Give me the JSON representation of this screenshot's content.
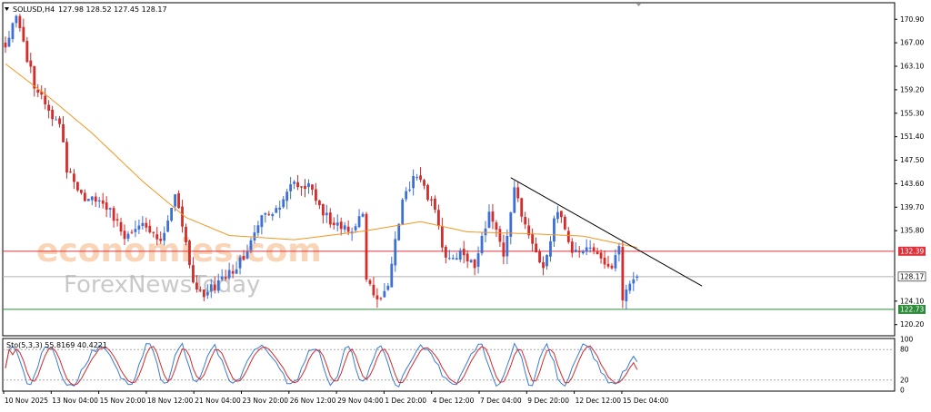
{
  "header": {
    "symbol": "SOLUSD,H4",
    "ohlc": "127.98 128.52 127.45 128.17"
  },
  "watermark": {
    "line1": "economies.com",
    "line2": "ForexNewsToday"
  },
  "colors": {
    "bull": "#3d6fd6",
    "bear": "#d42b2b",
    "ma": "#f0961f",
    "resistance": "#e0303a",
    "support": "#2e8b3a",
    "trendline": "#000000",
    "current_line": "#b0b0b0",
    "stoch_main": "#3a7bd5",
    "stoch_signal": "#d42b2b",
    "stoch_level": "#9a9a9a"
  },
  "chart_data": [
    {
      "type": "candlestick",
      "title": "SOLUSD,H4",
      "ohlc_last": {
        "open": 127.98,
        "high": 128.52,
        "low": 127.45,
        "close": 128.17
      },
      "ylim": [
        118.5,
        173.5
      ],
      "y_ticks": [
        {
          "value": 170.9,
          "label": "170.90"
        },
        {
          "value": 167.0,
          "label": "167.00"
        },
        {
          "value": 163.1,
          "label": "163.10"
        },
        {
          "value": 159.2,
          "label": "159.20"
        },
        {
          "value": 155.3,
          "label": "155.30"
        },
        {
          "value": 151.4,
          "label": "151.40"
        },
        {
          "value": 147.5,
          "label": "147.50"
        },
        {
          "value": 143.6,
          "label": "143.60"
        },
        {
          "value": 139.7,
          "label": "139.70"
        },
        {
          "value": 135.8,
          "label": "135.80"
        },
        {
          "value": 124.1,
          "label": "124.10"
        },
        {
          "value": 120.2,
          "label": "120.20"
        }
      ],
      "x_ticks": [
        "10 Nov 2025",
        "13 Nov 04:00",
        "15 Nov 20:00",
        "18 Nov 12:00",
        "21 Nov 04:00",
        "23 Nov 20:00",
        "26 Nov 12:00",
        "29 Nov 04:00",
        "1 Dec 20:00",
        "4 Dec 12:00",
        "7 Dec 04:00",
        "9 Dec 20:00",
        "12 Dec 12:00",
        "15 Dec 04:00"
      ],
      "levels": [
        {
          "name": "resistance",
          "value": 132.39,
          "label": "132.39"
        },
        {
          "name": "current",
          "value": 128.17,
          "label": "128.17"
        },
        {
          "name": "support",
          "value": 122.73,
          "label": "122.73"
        }
      ],
      "trendline": {
        "from": {
          "bar": 140,
          "price": 144.6
        },
        "to": {
          "bar": 193,
          "price": 126.6
        }
      },
      "anchors": [
        {
          "bar": 0,
          "price": 167.0
        },
        {
          "bar": 3,
          "price": 171.5
        },
        {
          "bar": 8,
          "price": 160.0
        },
        {
          "bar": 12,
          "price": 155.5
        },
        {
          "bar": 15,
          "price": 154.0
        },
        {
          "bar": 17,
          "price": 146.0
        },
        {
          "bar": 22,
          "price": 141.0
        },
        {
          "bar": 28,
          "price": 140.0
        },
        {
          "bar": 33,
          "price": 134.5
        },
        {
          "bar": 38,
          "price": 136.5
        },
        {
          "bar": 43,
          "price": 133.5
        },
        {
          "bar": 47,
          "price": 142.5
        },
        {
          "bar": 52,
          "price": 127.5
        },
        {
          "bar": 55,
          "price": 125.5
        },
        {
          "bar": 61,
          "price": 127.8
        },
        {
          "bar": 66,
          "price": 131.5
        },
        {
          "bar": 71,
          "price": 138.5
        },
        {
          "bar": 75,
          "price": 139.0
        },
        {
          "bar": 79,
          "price": 144.2
        },
        {
          "bar": 84,
          "price": 143.0
        },
        {
          "bar": 90,
          "price": 137.0
        },
        {
          "bar": 96,
          "price": 136.0
        },
        {
          "bar": 99,
          "price": 138.8
        },
        {
          "bar": 100,
          "price": 127.0
        },
        {
          "bar": 103,
          "price": 124.5
        },
        {
          "bar": 106,
          "price": 127.0
        },
        {
          "bar": 110,
          "price": 141.0
        },
        {
          "bar": 114,
          "price": 145.3
        },
        {
          "bar": 119,
          "price": 139.0
        },
        {
          "bar": 122,
          "price": 131.0
        },
        {
          "bar": 127,
          "price": 132.5
        },
        {
          "bar": 130,
          "price": 129.0
        },
        {
          "bar": 134,
          "price": 139.5
        },
        {
          "bar": 138,
          "price": 132.0
        },
        {
          "bar": 141,
          "price": 142.5
        },
        {
          "bar": 144,
          "price": 137.0
        },
        {
          "bar": 147,
          "price": 132.0
        },
        {
          "bar": 149,
          "price": 130.0
        },
        {
          "bar": 153,
          "price": 139.5
        },
        {
          "bar": 157,
          "price": 132.0
        },
        {
          "bar": 161,
          "price": 133.5
        },
        {
          "bar": 165,
          "price": 131.0
        },
        {
          "bar": 168,
          "price": 129.0
        },
        {
          "bar": 170,
          "price": 134.0
        },
        {
          "bar": 171,
          "price": 124.5
        },
        {
          "bar": 175,
          "price": 128.17
        }
      ],
      "ma_anchors": [
        {
          "bar": 0,
          "price": 163.5
        },
        {
          "bar": 12,
          "price": 158.0
        },
        {
          "bar": 24,
          "price": 152.0
        },
        {
          "bar": 38,
          "price": 144.0
        },
        {
          "bar": 50,
          "price": 138.0
        },
        {
          "bar": 62,
          "price": 135.0
        },
        {
          "bar": 80,
          "price": 134.3
        },
        {
          "bar": 100,
          "price": 135.8
        },
        {
          "bar": 115,
          "price": 137.3
        },
        {
          "bar": 128,
          "price": 135.6
        },
        {
          "bar": 145,
          "price": 135.3
        },
        {
          "bar": 160,
          "price": 134.9
        },
        {
          "bar": 175,
          "price": 133.0
        }
      ]
    },
    {
      "type": "line",
      "title": "Sto(5,3,3) 55.8169 40.4221",
      "series": [
        {
          "name": "main",
          "last": 55.8169
        },
        {
          "name": "signal",
          "last": 40.4221
        }
      ],
      "ylim": [
        0,
        100
      ],
      "y_ticks": [
        {
          "value": 100,
          "label": "100"
        },
        {
          "value": 80,
          "label": "80"
        },
        {
          "value": 20,
          "label": "20"
        },
        {
          "value": 0,
          "label": "0"
        }
      ],
      "levels": [
        80,
        20
      ]
    }
  ]
}
